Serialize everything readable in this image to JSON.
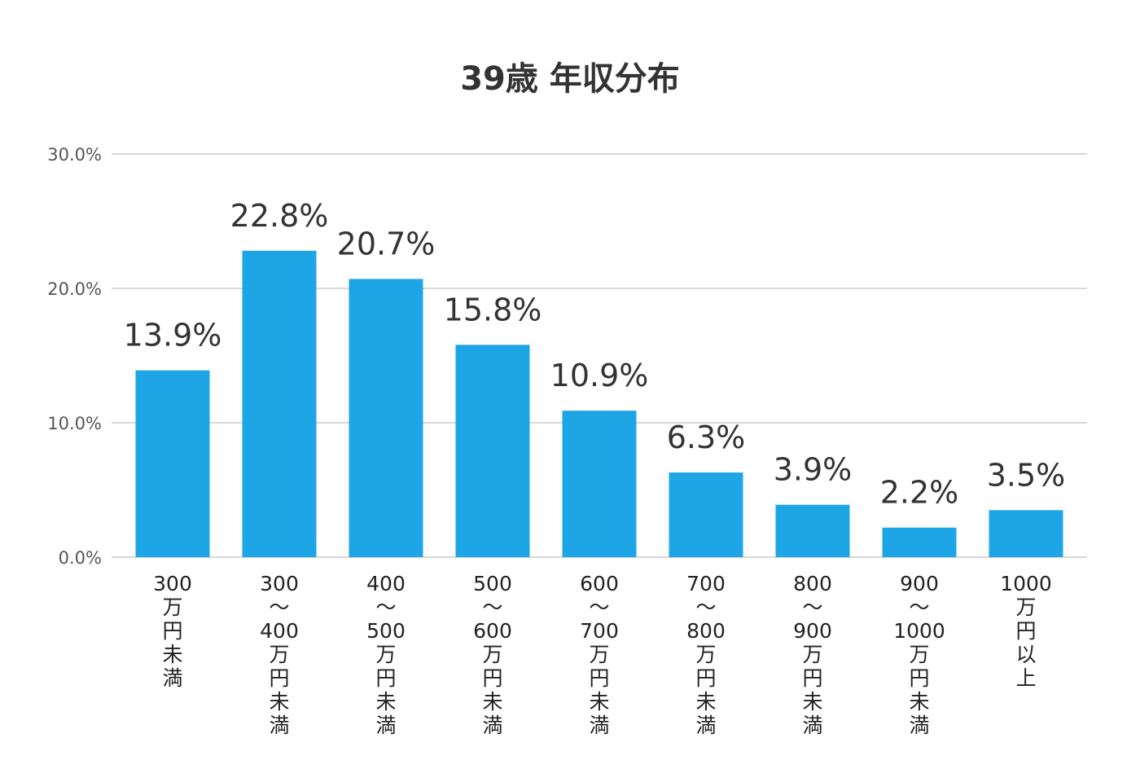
{
  "chart_data": {
    "type": "bar",
    "title": "39歳 年収分布",
    "xlabel": "",
    "ylabel": "",
    "ylim": [
      0,
      30
    ],
    "yticks": [
      "0.0%",
      "10.0%",
      "20.0%",
      "30.0%"
    ],
    "ytick_values": [
      0,
      10,
      20,
      30
    ],
    "grid": true,
    "bar_color": "#1ea5e6",
    "categories": [
      [
        "300",
        "万",
        "円",
        "未",
        "満"
      ],
      [
        "300",
        "〜",
        "400",
        "万",
        "円",
        "未",
        "満"
      ],
      [
        "400",
        "〜",
        "500",
        "万",
        "円",
        "未",
        "満"
      ],
      [
        "500",
        "〜",
        "600",
        "万",
        "円",
        "未",
        "満"
      ],
      [
        "600",
        "〜",
        "700",
        "万",
        "円",
        "未",
        "満"
      ],
      [
        "700",
        "〜",
        "800",
        "万",
        "円",
        "未",
        "満"
      ],
      [
        "800",
        "〜",
        "900",
        "万",
        "円",
        "未",
        "満"
      ],
      [
        "900",
        "〜",
        "1000",
        "万",
        "円",
        "未",
        "満"
      ],
      [
        "1000",
        "万",
        "円",
        "以",
        "上"
      ]
    ],
    "values": [
      13.9,
      22.8,
      20.7,
      15.8,
      10.9,
      6.3,
      3.9,
      2.2,
      3.5
    ],
    "data_labels": [
      "13.9%",
      "22.8%",
      "20.7%",
      "15.8%",
      "10.9%",
      "6.3%",
      "3.9%",
      "2.2%",
      "3.5%"
    ]
  }
}
